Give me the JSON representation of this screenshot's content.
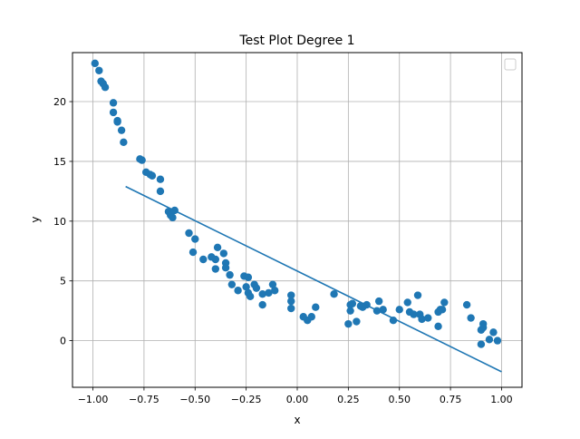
{
  "chart_data": {
    "type": "scatter",
    "title": "Test Plot Degree 1",
    "xlabel": "x",
    "ylabel": "y",
    "xlim": [
      -1.1,
      1.1
    ],
    "ylim": [
      -3.9,
      24.1
    ],
    "xticks": [
      -1.0,
      -0.75,
      -0.5,
      -0.25,
      0.0,
      0.25,
      0.5,
      0.75,
      1.0
    ],
    "xtick_labels": [
      "−1.00",
      "−0.75",
      "−0.50",
      "−0.25",
      "0.00",
      "0.25",
      "0.50",
      "0.75",
      "1.00"
    ],
    "yticks": [
      0,
      5,
      10,
      15,
      20
    ],
    "ytick_labels": [
      "0",
      "5",
      "10",
      "15",
      "20"
    ],
    "grid": true,
    "legend": {
      "placement": "upper-right",
      "entries": []
    },
    "series": [
      {
        "type": "scatter",
        "color": "#1f77b4",
        "points": [
          [
            -0.99,
            23.2
          ],
          [
            -0.97,
            22.6
          ],
          [
            -0.96,
            21.7
          ],
          [
            -0.95,
            21.5
          ],
          [
            -0.94,
            21.2
          ],
          [
            -0.9,
            19.9
          ],
          [
            -0.9,
            19.1
          ],
          [
            -0.88,
            18.4
          ],
          [
            -0.88,
            18.3
          ],
          [
            -0.86,
            17.6
          ],
          [
            -0.85,
            16.6
          ],
          [
            -0.77,
            15.2
          ],
          [
            -0.76,
            15.1
          ],
          [
            -0.74,
            14.1
          ],
          [
            -0.72,
            13.9
          ],
          [
            -0.71,
            13.8
          ],
          [
            -0.67,
            13.5
          ],
          [
            -0.67,
            12.5
          ],
          [
            -0.63,
            10.8
          ],
          [
            -0.62,
            10.5
          ],
          [
            -0.61,
            10.3
          ],
          [
            -0.6,
            10.9
          ],
          [
            -0.53,
            9.0
          ],
          [
            -0.5,
            8.5
          ],
          [
            -0.51,
            7.4
          ],
          [
            -0.46,
            6.8
          ],
          [
            -0.42,
            7.0
          ],
          [
            -0.4,
            6.8
          ],
          [
            -0.4,
            6.0
          ],
          [
            -0.39,
            7.8
          ],
          [
            -0.36,
            7.3
          ],
          [
            -0.35,
            6.5
          ],
          [
            -0.35,
            6.1
          ],
          [
            -0.33,
            5.5
          ],
          [
            -0.32,
            4.7
          ],
          [
            -0.29,
            4.2
          ],
          [
            -0.26,
            5.4
          ],
          [
            -0.24,
            5.3
          ],
          [
            -0.25,
            4.5
          ],
          [
            -0.24,
            4.0
          ],
          [
            -0.23,
            3.7
          ],
          [
            -0.21,
            4.7
          ],
          [
            -0.2,
            4.4
          ],
          [
            -0.17,
            3.9
          ],
          [
            -0.17,
            3.0
          ],
          [
            -0.14,
            4.0
          ],
          [
            -0.12,
            4.7
          ],
          [
            -0.11,
            4.2
          ],
          [
            -0.03,
            3.8
          ],
          [
            -0.03,
            3.3
          ],
          [
            -0.03,
            2.7
          ],
          [
            0.03,
            2.0
          ],
          [
            0.05,
            1.7
          ],
          [
            0.07,
            2.0
          ],
          [
            0.09,
            2.8
          ],
          [
            0.18,
            3.9
          ],
          [
            0.25,
            1.4
          ],
          [
            0.26,
            2.5
          ],
          [
            0.26,
            3.0
          ],
          [
            0.27,
            3.1
          ],
          [
            0.29,
            1.6
          ],
          [
            0.31,
            2.9
          ],
          [
            0.32,
            2.8
          ],
          [
            0.34,
            3.0
          ],
          [
            0.4,
            3.3
          ],
          [
            0.39,
            2.5
          ],
          [
            0.42,
            2.6
          ],
          [
            0.47,
            1.7
          ],
          [
            0.5,
            2.6
          ],
          [
            0.54,
            3.2
          ],
          [
            0.55,
            2.4
          ],
          [
            0.57,
            2.2
          ],
          [
            0.59,
            3.8
          ],
          [
            0.6,
            2.2
          ],
          [
            0.61,
            1.8
          ],
          [
            0.64,
            1.9
          ],
          [
            0.69,
            2.4
          ],
          [
            0.69,
            1.2
          ],
          [
            0.7,
            2.6
          ],
          [
            0.72,
            3.2
          ],
          [
            0.71,
            2.6
          ],
          [
            0.83,
            3.0
          ],
          [
            0.85,
            1.9
          ],
          [
            0.9,
            -0.3
          ],
          [
            0.9,
            0.9
          ],
          [
            0.91,
            1.4
          ],
          [
            0.91,
            1.1
          ],
          [
            0.94,
            0.1
          ],
          [
            0.96,
            0.7
          ],
          [
            0.98,
            0.0
          ]
        ]
      },
      {
        "type": "line",
        "color": "#1f77b4",
        "points": [
          [
            -0.84,
            12.9
          ],
          [
            1.0,
            -2.6
          ]
        ]
      }
    ]
  }
}
